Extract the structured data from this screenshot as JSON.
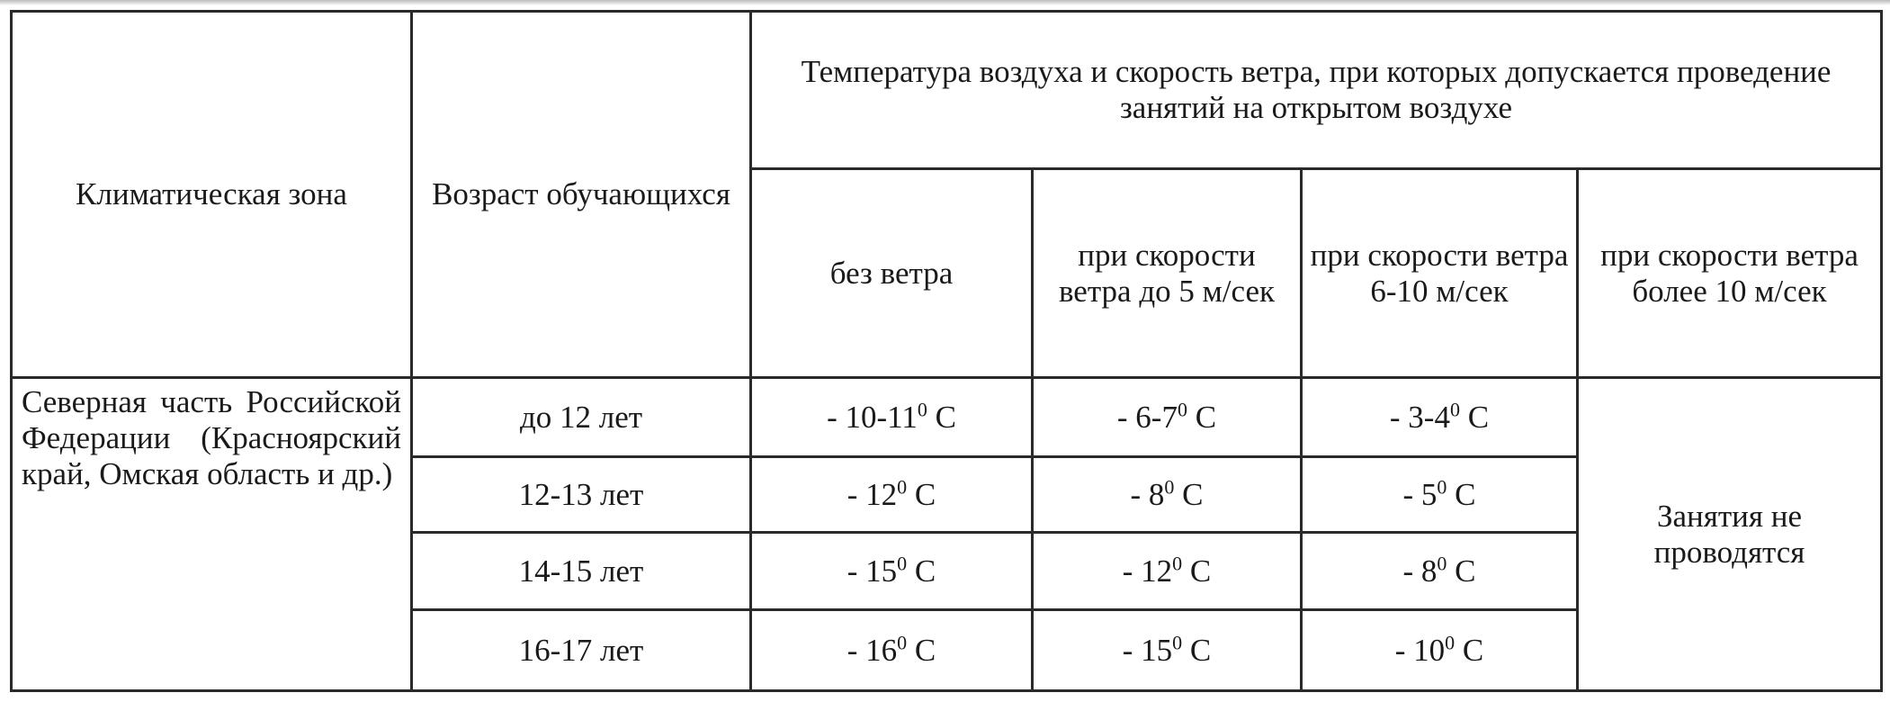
{
  "header": {
    "zone": "Климатическая зона",
    "age": "Возраст обучающихся",
    "conditions": "Температура воздуха и скорость ветра, при которых допускается проведение занятий на открытом воздухе",
    "wind": [
      "без ветра",
      "при скорости ветра до 5 м/сек",
      "при скорости ветра 6-10 м/сек",
      "при скорости ветра более 10 м/сек"
    ]
  },
  "zone_name": "Северная часть Российской Федерации (Красноярский край, Омская область и др.)",
  "no_classes": "Занятия не проводятся",
  "rows": [
    {
      "age": "до 12 лет",
      "t": [
        {
          "n": "- 10-11",
          "d": "0",
          "u": " C"
        },
        {
          "n": "- 6-7",
          "d": "0",
          "u": " C"
        },
        {
          "n": "- 3-4",
          "d": "0",
          "u": " C"
        }
      ]
    },
    {
      "age": "12-13 лет",
      "t": [
        {
          "n": "- 12",
          "d": "0",
          "u": " C"
        },
        {
          "n": "- 8",
          "d": "0",
          "u": " C"
        },
        {
          "n": "- 5",
          "d": "0",
          "u": " C"
        }
      ]
    },
    {
      "age": "14-15 лет",
      "t": [
        {
          "n": "- 15",
          "d": "0",
          "u": " C"
        },
        {
          "n": "- 12",
          "d": "0",
          "u": " C"
        },
        {
          "n": "- 8",
          "d": "0",
          "u": " C"
        }
      ]
    },
    {
      "age": "16-17 лет",
      "t": [
        {
          "n": "- 16",
          "d": "0",
          "u": " C"
        },
        {
          "n": "- 15",
          "d": "0",
          "u": " C"
        },
        {
          "n": "- 10",
          "d": "0",
          "u": " C"
        }
      ]
    }
  ]
}
